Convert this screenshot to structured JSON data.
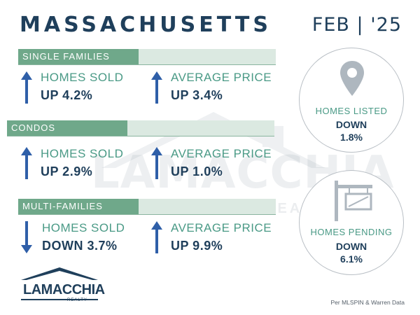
{
  "header": {
    "title": "MASSACHUSETTS",
    "date": "FEB | '25"
  },
  "watermark": {
    "text": "LAMACCHIA",
    "sub": "REALTY"
  },
  "sections": [
    {
      "label": "SINGLE FAMILIES",
      "homes_sold_label": "HOMES SOLD",
      "homes_sold_value": "UP 4.2%",
      "homes_sold_direction": "up",
      "avg_price_label": "AVERAGE PRICE",
      "avg_price_value": "UP 3.4%",
      "avg_price_direction": "up"
    },
    {
      "label": "CONDOS",
      "homes_sold_label": "HOMES SOLD",
      "homes_sold_value": "UP 2.9%",
      "homes_sold_direction": "up",
      "avg_price_label": "AVERAGE PRICE",
      "avg_price_value": "UP 1.0%",
      "avg_price_direction": "up"
    },
    {
      "label": "MULTI-FAMILIES",
      "homes_sold_label": "HOMES SOLD",
      "homes_sold_value": "DOWN 3.7%",
      "homes_sold_direction": "down",
      "avg_price_label": "AVERAGE PRICE",
      "avg_price_value": "UP 9.9%",
      "avg_price_direction": "up"
    }
  ],
  "circles": {
    "listed": {
      "icon": "map-pin-icon",
      "label": "HOMES LISTED",
      "direction": "DOWN",
      "pct": "1.8%"
    },
    "pending": {
      "icon": "for-sale-sign-icon",
      "label": "HOMES PENDING",
      "direction": "DOWN",
      "pct": "6.1%"
    }
  },
  "logo": {
    "text": "LAMACCHIA",
    "sub": "REALTY"
  },
  "source": "Per MLSPIN & Warren Data",
  "colors": {
    "navy": "#1f3f5b",
    "teal": "#4a9a86",
    "green_bar": "#6fa88a",
    "arrow_blue": "#2f5fa8"
  }
}
